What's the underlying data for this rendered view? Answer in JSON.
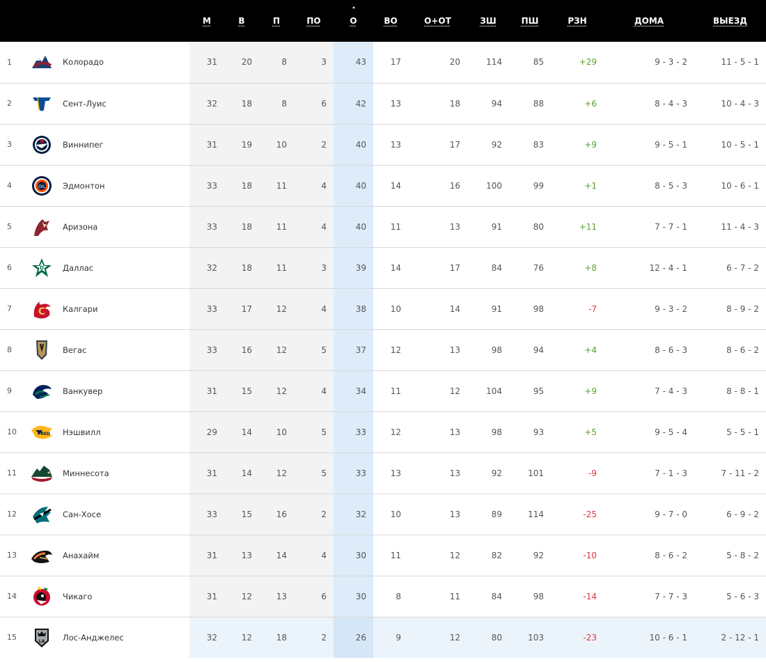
{
  "columns": [
    {
      "key": "gp",
      "label": "М"
    },
    {
      "key": "w",
      "label": "В"
    },
    {
      "key": "l",
      "label": "П"
    },
    {
      "key": "otl",
      "label": "ПО"
    },
    {
      "key": "pts",
      "label": "О"
    },
    {
      "key": "rw",
      "label": "ВО"
    },
    {
      "key": "row",
      "label": "О+ОТ"
    },
    {
      "key": "gf",
      "label": "ЗШ"
    },
    {
      "key": "ga",
      "label": "ПШ"
    },
    {
      "key": "diff",
      "label": "РЗН"
    },
    {
      "key": "home",
      "label": "ДОМА"
    },
    {
      "key": "away",
      "label": "ВЫЕЗД"
    }
  ],
  "colors": {
    "header_bg": "#000000",
    "positive": "#5aa02c",
    "negative": "#e0323c",
    "sorted_column": "#ddecf8"
  },
  "rows": [
    {
      "rank": "1",
      "team": "Колорадо",
      "logo": "colorado-avalanche-logo",
      "gp": "31",
      "w": "20",
      "l": "8",
      "otl": "3",
      "pts": "43",
      "rw": "17",
      "row": "20",
      "gf": "114",
      "ga": "85",
      "diff": "+29",
      "home": "9 - 3 - 2",
      "away": "11 - 5 - 1"
    },
    {
      "rank": "2",
      "team": "Сент-Луис",
      "logo": "st-louis-blues-logo",
      "gp": "32",
      "w": "18",
      "l": "8",
      "otl": "6",
      "pts": "42",
      "rw": "13",
      "row": "18",
      "gf": "94",
      "ga": "88",
      "diff": "+6",
      "home": "8 - 4 - 3",
      "away": "10 - 4 - 3"
    },
    {
      "rank": "3",
      "team": "Виннипег",
      "logo": "winnipeg-jets-logo",
      "gp": "31",
      "w": "19",
      "l": "10",
      "otl": "2",
      "pts": "40",
      "rw": "13",
      "row": "17",
      "gf": "92",
      "ga": "83",
      "diff": "+9",
      "home": "9 - 5 - 1",
      "away": "10 - 5 - 1"
    },
    {
      "rank": "4",
      "team": "Эдмонтон",
      "logo": "edmonton-oilers-logo",
      "gp": "33",
      "w": "18",
      "l": "11",
      "otl": "4",
      "pts": "40",
      "rw": "14",
      "row": "16",
      "gf": "100",
      "ga": "99",
      "diff": "+1",
      "home": "8 - 5 - 3",
      "away": "10 - 6 - 1"
    },
    {
      "rank": "5",
      "team": "Аризона",
      "logo": "arizona-coyotes-logo",
      "gp": "33",
      "w": "18",
      "l": "11",
      "otl": "4",
      "pts": "40",
      "rw": "11",
      "row": "13",
      "gf": "91",
      "ga": "80",
      "diff": "+11",
      "home": "7 - 7 - 1",
      "away": "11 - 4 - 3"
    },
    {
      "rank": "6",
      "team": "Даллас",
      "logo": "dallas-stars-logo",
      "gp": "32",
      "w": "18",
      "l": "11",
      "otl": "3",
      "pts": "39",
      "rw": "14",
      "row": "17",
      "gf": "84",
      "ga": "76",
      "diff": "+8",
      "home": "12 - 4 - 1",
      "away": "6 - 7 - 2"
    },
    {
      "rank": "7",
      "team": "Калгари",
      "logo": "calgary-flames-logo",
      "gp": "33",
      "w": "17",
      "l": "12",
      "otl": "4",
      "pts": "38",
      "rw": "10",
      "row": "14",
      "gf": "91",
      "ga": "98",
      "diff": "-7",
      "home": "9 - 3 - 2",
      "away": "8 - 9 - 2"
    },
    {
      "rank": "8",
      "team": "Вегас",
      "logo": "vegas-golden-knights-logo",
      "gp": "33",
      "w": "16",
      "l": "12",
      "otl": "5",
      "pts": "37",
      "rw": "12",
      "row": "13",
      "gf": "98",
      "ga": "94",
      "diff": "+4",
      "home": "8 - 6 - 3",
      "away": "8 - 6 - 2"
    },
    {
      "rank": "9",
      "team": "Ванкувер",
      "logo": "vancouver-canucks-logo",
      "gp": "31",
      "w": "15",
      "l": "12",
      "otl": "4",
      "pts": "34",
      "rw": "11",
      "row": "12",
      "gf": "104",
      "ga": "95",
      "diff": "+9",
      "home": "7 - 4 - 3",
      "away": "8 - 8 - 1"
    },
    {
      "rank": "10",
      "team": "Нэшвилл",
      "logo": "nashville-predators-logo",
      "gp": "29",
      "w": "14",
      "l": "10",
      "otl": "5",
      "pts": "33",
      "rw": "12",
      "row": "13",
      "gf": "98",
      "ga": "93",
      "diff": "+5",
      "home": "9 - 5 - 4",
      "away": "5 - 5 - 1"
    },
    {
      "rank": "11",
      "team": "Миннесота",
      "logo": "minnesota-wild-logo",
      "gp": "31",
      "w": "14",
      "l": "12",
      "otl": "5",
      "pts": "33",
      "rw": "13",
      "row": "13",
      "gf": "92",
      "ga": "101",
      "diff": "-9",
      "home": "7 - 1 - 3",
      "away": "7 - 11 - 2"
    },
    {
      "rank": "12",
      "team": "Сан-Хосе",
      "logo": "san-jose-sharks-logo",
      "gp": "33",
      "w": "15",
      "l": "16",
      "otl": "2",
      "pts": "32",
      "rw": "10",
      "row": "13",
      "gf": "89",
      "ga": "114",
      "diff": "-25",
      "home": "9 - 7 - 0",
      "away": "6 - 9 - 2"
    },
    {
      "rank": "13",
      "team": "Анахайм",
      "logo": "anaheim-ducks-logo",
      "gp": "31",
      "w": "13",
      "l": "14",
      "otl": "4",
      "pts": "30",
      "rw": "11",
      "row": "12",
      "gf": "82",
      "ga": "92",
      "diff": "-10",
      "home": "8 - 6 - 2",
      "away": "5 - 8 - 2"
    },
    {
      "rank": "14",
      "team": "Чикаго",
      "logo": "chicago-blackhawks-logo",
      "gp": "31",
      "w": "12",
      "l": "13",
      "otl": "6",
      "pts": "30",
      "rw": "8",
      "row": "11",
      "gf": "84",
      "ga": "98",
      "diff": "-14",
      "home": "7 - 7 - 3",
      "away": "5 - 6 - 3"
    },
    {
      "rank": "15",
      "team": "Лос-Анджелес",
      "logo": "los-angeles-kings-logo",
      "gp": "32",
      "w": "12",
      "l": "18",
      "otl": "2",
      "pts": "26",
      "rw": "9",
      "row": "12",
      "gf": "80",
      "ga": "103",
      "diff": "-23",
      "home": "10 - 6 - 1",
      "away": "2 - 12 - 1"
    }
  ]
}
